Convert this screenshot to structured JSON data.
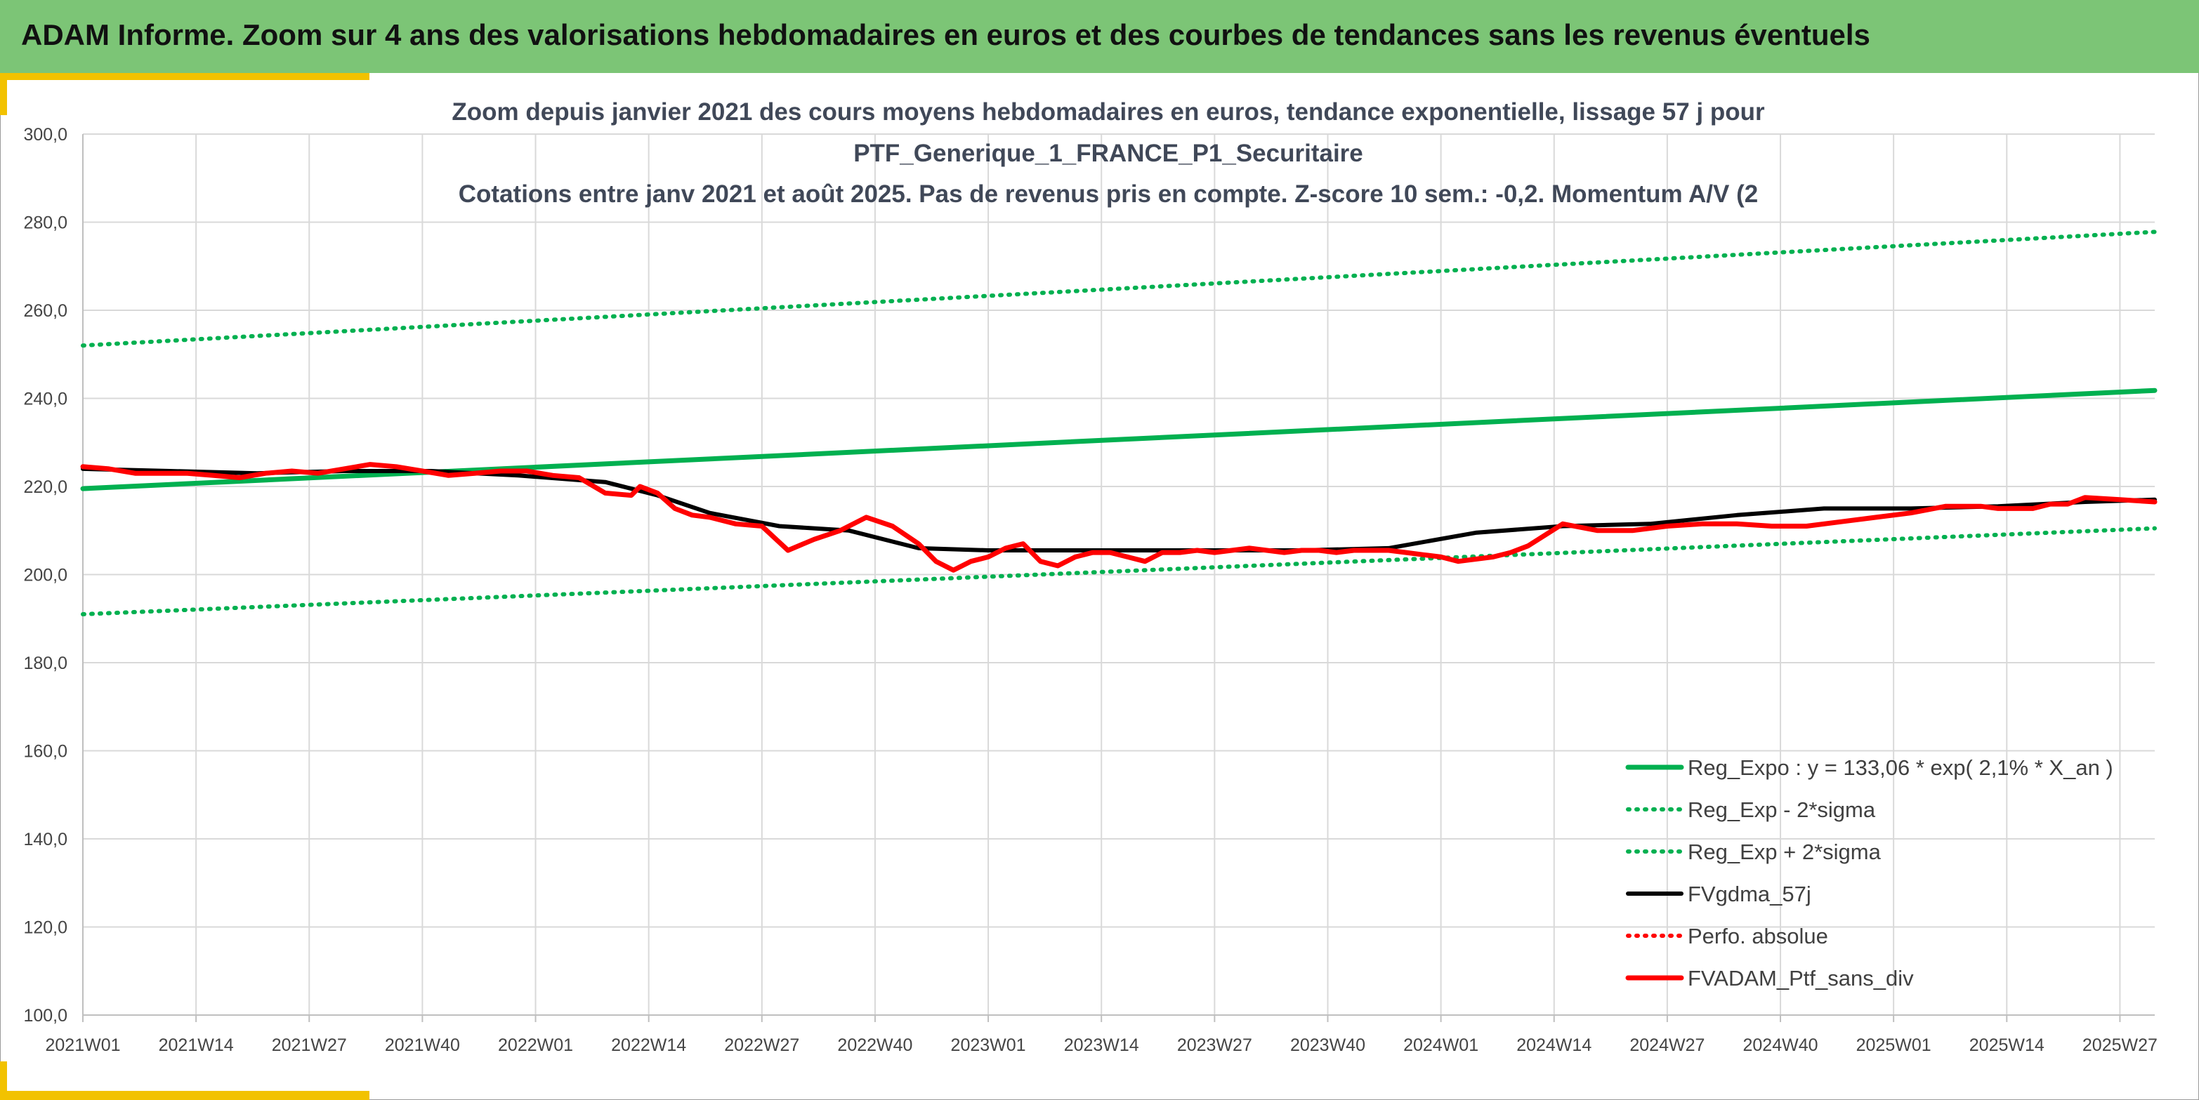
{
  "header": {
    "title": "ADAM Informe. Zoom sur 4 ans des valorisations hebdomadaires en euros et des courbes de tendances sans les revenus éventuels"
  },
  "colors": {
    "banner": "#7cc576",
    "accent": "#f2c200",
    "trend_green": "#00b050",
    "moving_average": "#000000",
    "portfolio_red": "#ff0000"
  },
  "chart_data": {
    "type": "line",
    "title_lines": [
      "Zoom depuis janvier 2021 des cours moyens hebdomadaires en euros, tendance exponentielle, lissage 57 j pour",
      "PTF_Generique_1_FRANCE_P1_Securitaire",
      "Cotations entre janv 2021 et août 2025. Pas de revenus pris en compte. Z-score 10 sem.: -0,2. Momentum A/V (2"
    ],
    "x_ticks": [
      "2021W01",
      "2021W14",
      "2021W27",
      "2021W40",
      "2022W01",
      "2022W14",
      "2022W27",
      "2022W40",
      "2023W01",
      "2023W14",
      "2023W27",
      "2023W40",
      "2024W01",
      "2024W14",
      "2024W27",
      "2024W40",
      "2025W01",
      "2025W14",
      "2025W27"
    ],
    "x_range_weeks": [
      0,
      238
    ],
    "ylim": [
      100,
      300
    ],
    "y_ticks": [
      "100,0",
      "120,0",
      "140,0",
      "160,0",
      "180,0",
      "200,0",
      "220,0",
      "240,0",
      "260,0",
      "280,0",
      "300,0"
    ],
    "grid": true,
    "legend_position": "bottom-right",
    "legend": [
      {
        "label": "Reg_Expo : y = 133,06 * exp( 2,1% *  X_an )",
        "style": "solid-green"
      },
      {
        "label": "Reg_Exp - 2*sigma",
        "style": "dotted-green"
      },
      {
        "label": "Reg_Exp + 2*sigma",
        "style": "dotted-green"
      },
      {
        "label": "FVgdma_57j",
        "style": "solid-black"
      },
      {
        "label": "Perfo. absolue",
        "style": "dotted-red"
      },
      {
        "label": "FVADAM_Ptf_sans_div",
        "style": "solid-red"
      }
    ],
    "series": [
      {
        "name": "Reg_Expo : y = 133,06 * exp( 2,1% *  X_an )",
        "x": [
          0,
          238
        ],
        "values": [
          219.5,
          241.8
        ]
      },
      {
        "name": "Reg_Exp - 2*sigma",
        "x": [
          0,
          238
        ],
        "values": [
          191.0,
          210.5
        ]
      },
      {
        "name": "Reg_Exp + 2*sigma",
        "x": [
          0,
          238
        ],
        "values": [
          252.0,
          277.8
        ]
      },
      {
        "name": "FVgdma_57j",
        "x": [
          0,
          10,
          20,
          30,
          40,
          50,
          60,
          66,
          72,
          80,
          88,
          96,
          104,
          112,
          118,
          124,
          130,
          140,
          150,
          160,
          170,
          180,
          190,
          200,
          210,
          220,
          230,
          238
        ],
        "values": [
          224,
          223.5,
          223,
          223.5,
          223.5,
          222.5,
          221,
          218,
          214,
          211,
          210,
          206,
          205.5,
          205.5,
          205.5,
          205.5,
          205.5,
          205.5,
          206,
          209.5,
          211,
          211.5,
          213.5,
          215,
          215,
          215.5,
          216.5,
          217
        ]
      },
      {
        "name": "FVADAM_Ptf_sans_div",
        "x": [
          0,
          3,
          6,
          9,
          12,
          15,
          18,
          21,
          24,
          27,
          30,
          33,
          36,
          39,
          42,
          45,
          48,
          51,
          54,
          57,
          60,
          63,
          64,
          66,
          68,
          70,
          72,
          75,
          78,
          81,
          84,
          87,
          90,
          93,
          96,
          98,
          100,
          102,
          104,
          106,
          108,
          110,
          112,
          114,
          116,
          118,
          120,
          122,
          124,
          126,
          128,
          130,
          132,
          134,
          136,
          138,
          140,
          142,
          144,
          146,
          148,
          150,
          152,
          154,
          156,
          158,
          160,
          162,
          164,
          166,
          170,
          174,
          178,
          182,
          186,
          190,
          194,
          198,
          202,
          206,
          210,
          214,
          218,
          220,
          222,
          224,
          226,
          228,
          230,
          234,
          238
        ],
        "values": [
          224.5,
          224,
          223,
          223,
          223,
          222.5,
          222,
          223,
          223.5,
          223,
          224,
          225,
          224.5,
          223.5,
          222.5,
          223,
          223.5,
          223.5,
          222.5,
          222,
          218.5,
          218,
          220,
          218.5,
          215,
          213.5,
          213,
          211.5,
          211,
          205.5,
          208,
          210,
          213,
          211,
          207,
          203,
          201,
          203,
          204,
          206,
          207,
          203,
          202,
          204,
          205,
          205,
          204,
          203,
          205,
          205,
          205.5,
          205,
          205.5,
          206,
          205.5,
          205,
          205.5,
          205.5,
          205,
          205.5,
          205.5,
          205.5,
          205,
          204.5,
          204,
          203,
          203.5,
          204,
          205,
          206.5,
          211.5,
          210,
          210,
          211,
          211.5,
          211.5,
          211,
          211,
          212,
          213,
          214,
          215.5,
          215.5,
          215,
          215,
          215,
          216,
          216,
          217.5,
          217,
          216.5
        ]
      }
    ]
  }
}
